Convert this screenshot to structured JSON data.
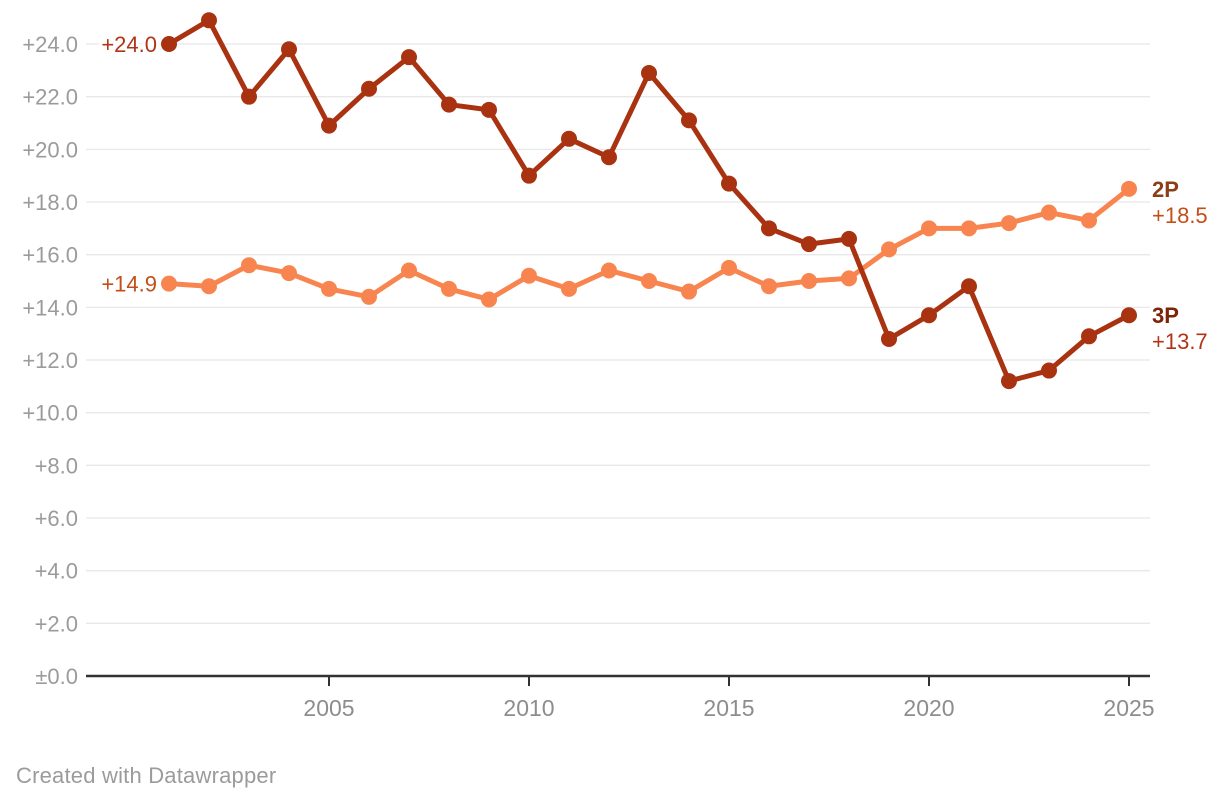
{
  "footer": {
    "attribution": "Created with Datawrapper"
  },
  "chart_data": {
    "type": "line",
    "x": [
      2001,
      2002,
      2003,
      2004,
      2005,
      2006,
      2007,
      2008,
      2009,
      2010,
      2011,
      2012,
      2013,
      2014,
      2015,
      2016,
      2017,
      2018,
      2019,
      2020,
      2021,
      2022,
      2023,
      2024,
      2025
    ],
    "x_ticks": [
      2005,
      2010,
      2015,
      2020,
      2025
    ],
    "x_tick_labels": [
      "2005",
      "2010",
      "2015",
      "2020",
      "2025"
    ],
    "y_ticks": [
      {
        "label": "+24.0",
        "value": 24
      },
      {
        "label": "+22.0",
        "value": 22
      },
      {
        "label": "+20.0",
        "value": 20
      },
      {
        "label": "+18.0",
        "value": 18
      },
      {
        "label": "+16.0",
        "value": 16
      },
      {
        "label": "+14.0",
        "value": 14
      },
      {
        "label": "+12.0",
        "value": 12
      },
      {
        "label": "+10.0",
        "value": 10
      },
      {
        "label": "+8.0",
        "value": 8
      },
      {
        "label": "+6.0",
        "value": 6
      },
      {
        "label": "+4.0",
        "value": 4
      },
      {
        "label": "+2.0",
        "value": 2
      },
      {
        "label": "±0.0",
        "value": 0
      }
    ],
    "xlim": [
      2001,
      2025
    ],
    "ylim": [
      0,
      24
    ],
    "grid": "horizontal",
    "legend_position": "direct-line-labels-right",
    "series": [
      {
        "name": "2P",
        "color": "#f8854f",
        "name_label_color": "#8c3e19",
        "value_label_color": "#c24e1a",
        "first_value_label": "+14.9",
        "last_value_label": "+18.5",
        "values": [
          14.9,
          14.8,
          15.6,
          15.3,
          14.7,
          14.4,
          15.4,
          14.7,
          14.3,
          15.2,
          14.7,
          15.4,
          15.0,
          14.6,
          15.5,
          14.8,
          15.0,
          15.1,
          16.2,
          17.0,
          17.0,
          17.2,
          17.6,
          17.3,
          18.5
        ]
      },
      {
        "name": "3P",
        "color": "#a93211",
        "name_label_color": "#7c2407",
        "value_label_color": "#b23418",
        "first_value_label": "+24.0",
        "last_value_label": "+13.7",
        "values": [
          24.0,
          24.9,
          22.0,
          23.8,
          20.9,
          22.3,
          23.5,
          21.7,
          21.5,
          19.0,
          20.4,
          19.7,
          22.9,
          21.1,
          18.7,
          17.0,
          16.4,
          16.6,
          12.8,
          13.7,
          14.8,
          11.2,
          11.6,
          12.9,
          13.7
        ]
      }
    ],
    "style": {
      "grid_color": "#e8e8e8",
      "axis_line_color": "#333333",
      "tick_color": "#333333",
      "y_label_color": "#9b9b9b",
      "x_label_color": "#8d8d8d",
      "background": "#ffffff"
    }
  }
}
